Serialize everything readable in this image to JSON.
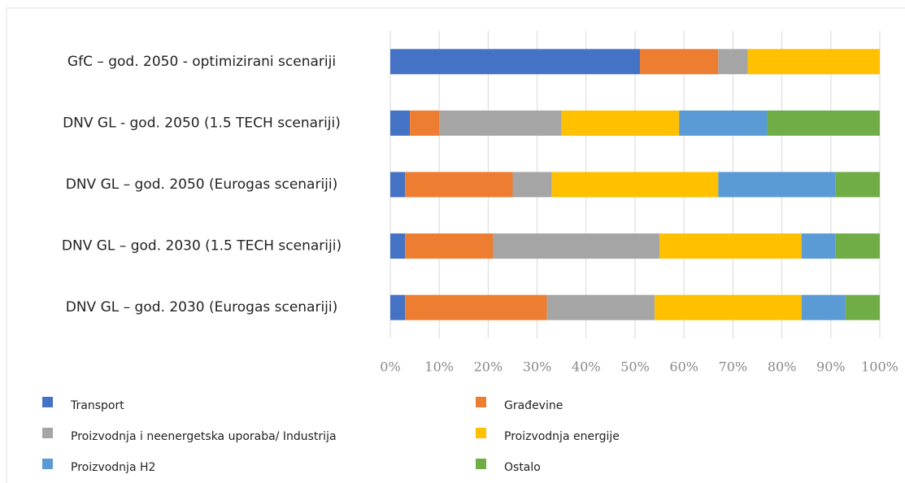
{
  "chart_data": {
    "type": "stacked_bar_horizontal",
    "categories": [
      "GfC – god. 2050 - optimizirani scenariji",
      "DNV GL - god. 2050 (1.5 TECH scenariji)",
      "DNV GL – god. 2050 (Eurogas scenariji)",
      "DNV GL – god. 2030 (1.5 TECH scenariji)",
      "DNV GL – god. 2030 (Eurogas scenariji)"
    ],
    "series": [
      {
        "name": "Transport",
        "color": "#4472c4",
        "values": [
          51,
          4,
          3,
          3,
          3
        ]
      },
      {
        "name": "Građevine",
        "color": "#ed7d31",
        "values": [
          16,
          6,
          22,
          18,
          29
        ]
      },
      {
        "name": "Proizvodnja i neenergetska uporaba/ Industrija",
        "color": "#a5a5a5",
        "values": [
          6,
          25,
          8,
          34,
          22
        ]
      },
      {
        "name": "Proizvodnja energije",
        "color": "#ffc000",
        "values": [
          27,
          24,
          34,
          29,
          30
        ]
      },
      {
        "name": "Proizvodnja H2",
        "color": "#5b9bd5",
        "values": [
          0,
          18,
          24,
          7,
          9
        ]
      },
      {
        "name": "Ostalo",
        "color": "#70ad47",
        "values": [
          0,
          23,
          9,
          9,
          7
        ]
      }
    ],
    "xlim": [
      0,
      100
    ],
    "xticks": [
      {
        "value": 0,
        "label": "0%"
      },
      {
        "value": 10,
        "label": "10%"
      },
      {
        "value": 20,
        "label": "20%"
      },
      {
        "value": 30,
        "label": "30%"
      },
      {
        "value": 40,
        "label": "40%"
      },
      {
        "value": 50,
        "label": "50%"
      },
      {
        "value": 60,
        "label": "60%"
      },
      {
        "value": 70,
        "label": "70%"
      },
      {
        "value": 80,
        "label": "80%"
      },
      {
        "value": 90,
        "label": "90%"
      },
      {
        "value": 100,
        "label": "100%"
      }
    ],
    "grid": true
  }
}
